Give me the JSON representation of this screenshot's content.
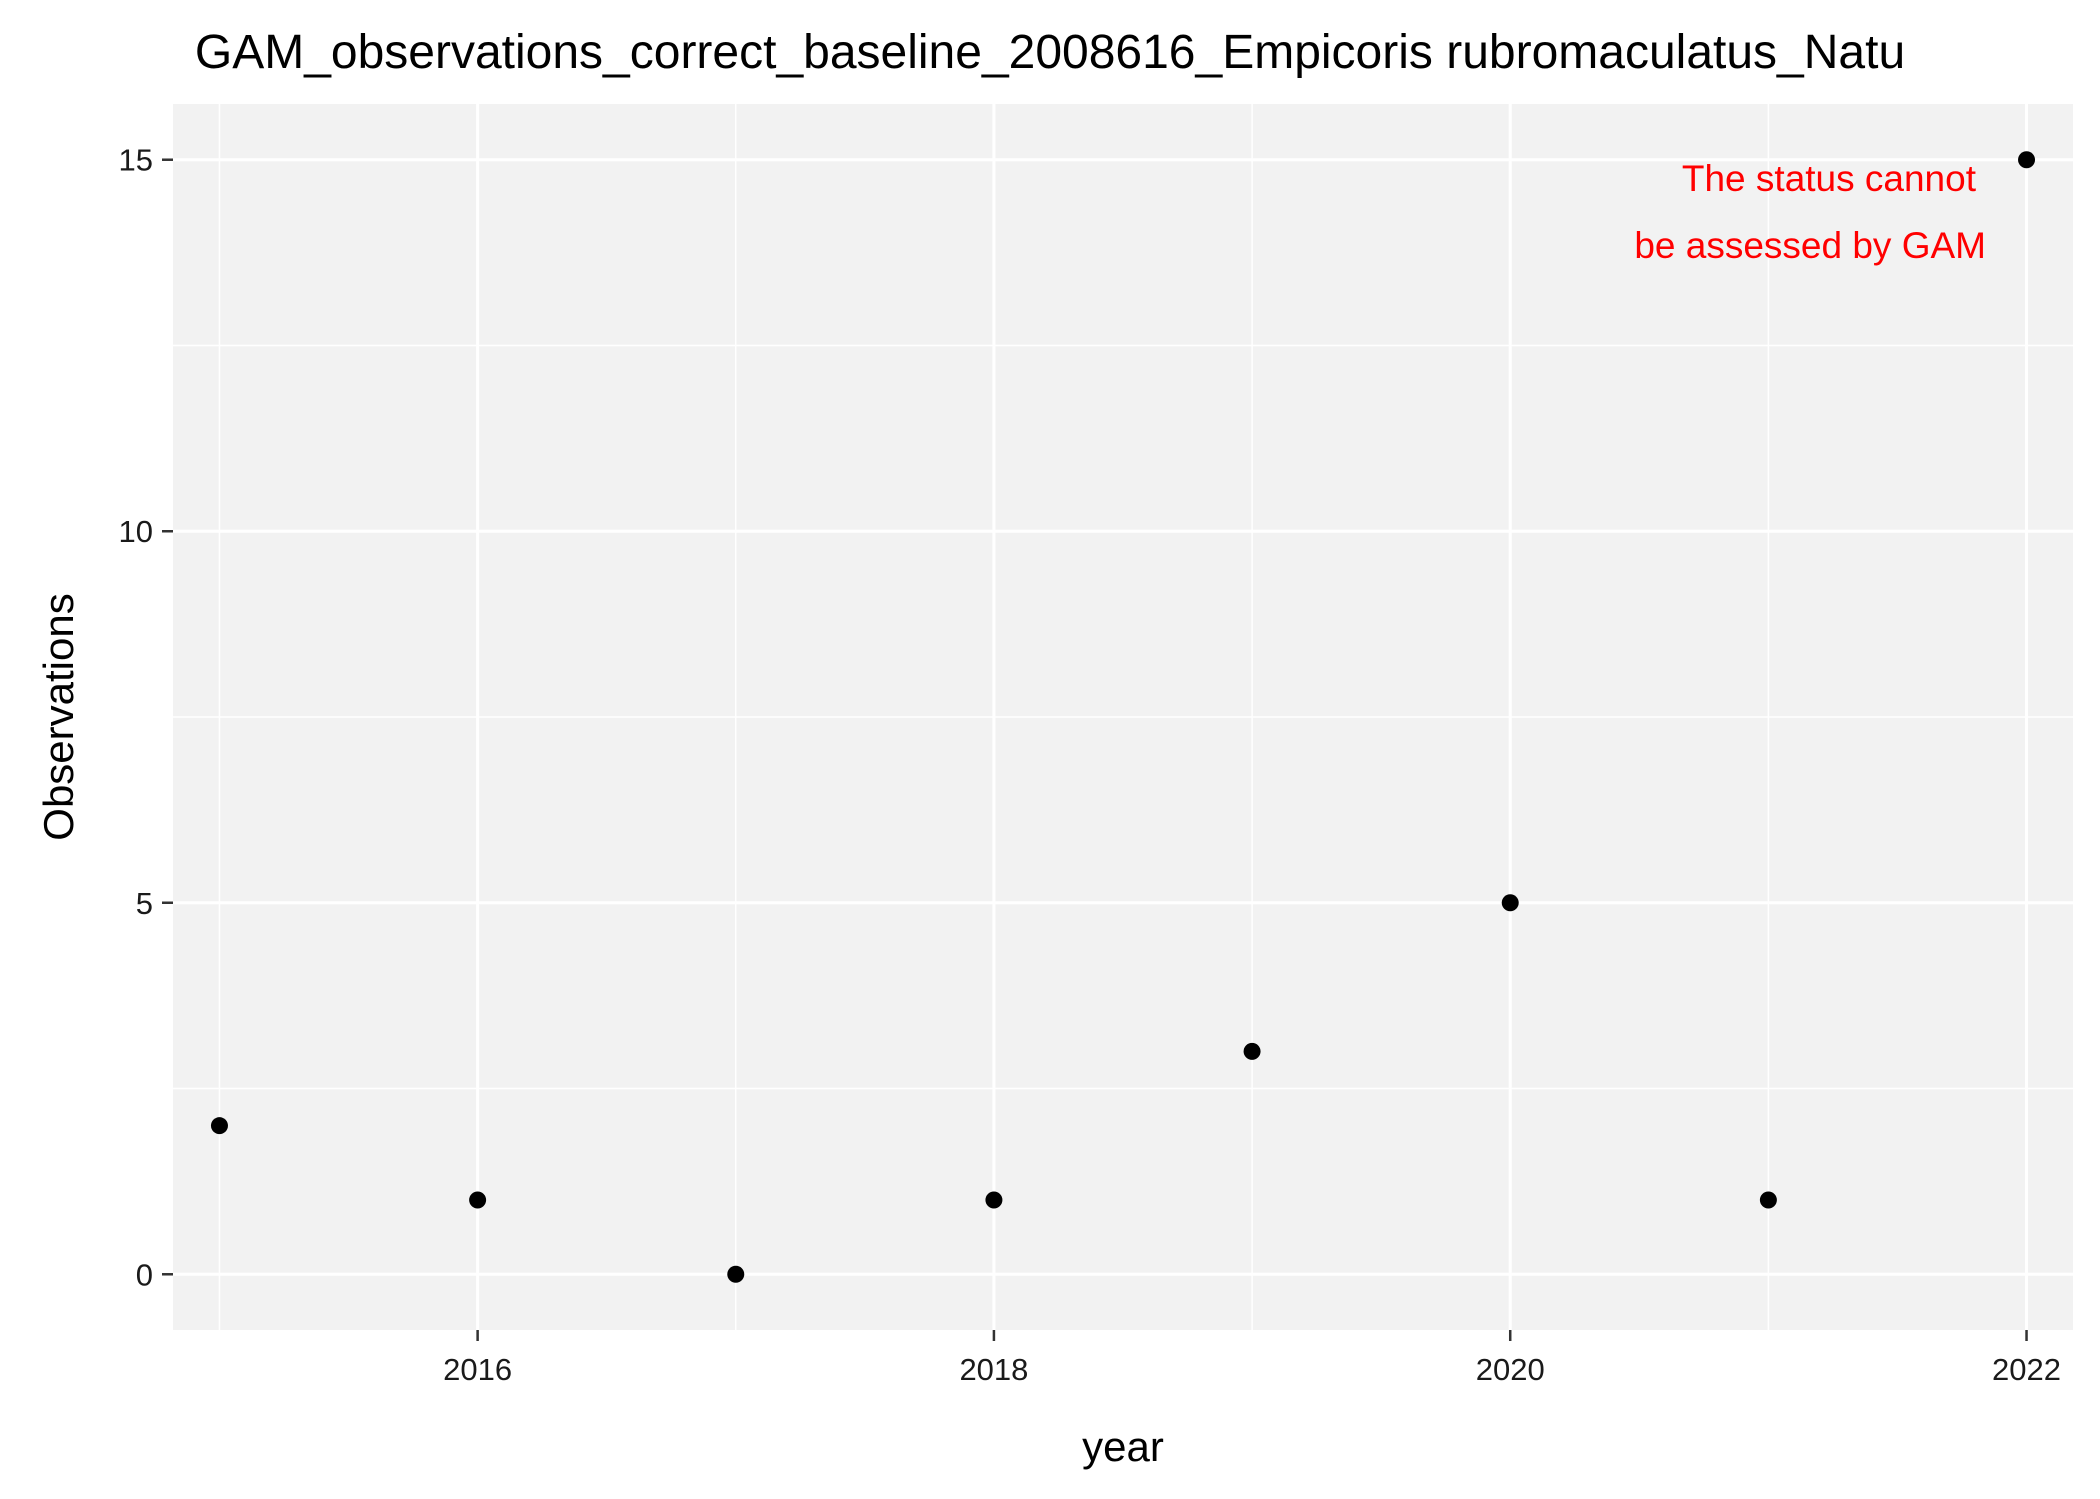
{
  "chart_data": {
    "type": "scatter",
    "title": "GAM_observations_correct_baseline_2008616_Empicoris rubromaculatus_Natu",
    "xlabel": "year",
    "ylabel": "Observations",
    "xlim": [
      2014.82,
      2022.18
    ],
    "ylim": [
      -0.75,
      15.75
    ],
    "x_ticks": [
      2016,
      2018,
      2020,
      2022
    ],
    "y_ticks": [
      0,
      5,
      10,
      15
    ],
    "x_tick_labels": [
      "2016",
      "2018",
      "2020",
      "2022"
    ],
    "y_tick_labels": [
      "0",
      "5",
      "10",
      "15"
    ],
    "grid": true,
    "legend": "none",
    "points": [
      {
        "x": 2015,
        "y": 2
      },
      {
        "x": 2016,
        "y": 1
      },
      {
        "x": 2017,
        "y": 0
      },
      {
        "x": 2018,
        "y": 1
      },
      {
        "x": 2019,
        "y": 3
      },
      {
        "x": 2020,
        "y": 5
      },
      {
        "x": 2021,
        "y": 1
      },
      {
        "x": 2022,
        "y": 15
      }
    ],
    "annotation": {
      "lines": [
        "The status cannot",
        "be assessed by GAM"
      ],
      "color": "#ff0000"
    },
    "colors": {
      "panel_background": "#f2f2f2",
      "grid": "#ffffff",
      "point": "#000000"
    }
  }
}
